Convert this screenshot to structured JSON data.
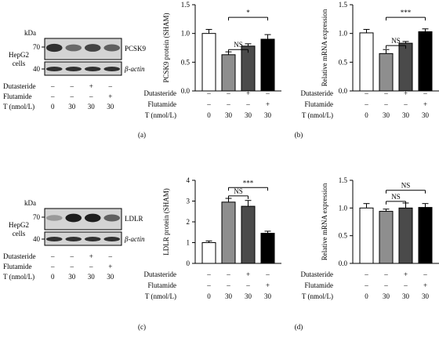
{
  "condition_labels": [
    "Dutasteride",
    "Flutamide",
    "T (nmol/L)"
  ],
  "conditions": {
    "dutasteride": [
      "–",
      "–",
      "+",
      "–"
    ],
    "flutamide": [
      "–",
      "–",
      "–",
      "+"
    ],
    "t_nmol": [
      "0",
      "30",
      "30",
      "30"
    ]
  },
  "blots": [
    {
      "panel_label": "(a)",
      "cell_label": [
        "HepG2",
        "cells"
      ],
      "kda_label": "kDa",
      "markers": [
        "70",
        "40"
      ],
      "target": "PCSK9",
      "loading": "β-actin",
      "target_intensity": [
        0.85,
        0.55,
        0.75,
        0.6
      ],
      "loading_intensity": [
        0.85,
        0.85,
        0.85,
        0.85
      ]
    },
    {
      "panel_label": "(c)",
      "cell_label": [
        "HepG2",
        "cells"
      ],
      "kda_label": "kDa",
      "markers": [
        "70",
        "40"
      ],
      "target": "LDLR",
      "loading": "β-actin",
      "target_intensity": [
        0.3,
        0.95,
        0.95,
        0.6
      ],
      "loading_intensity": [
        0.85,
        0.85,
        0.85,
        0.85
      ]
    }
  ],
  "chart_data": [
    {
      "panel_label": "",
      "type": "bar",
      "categories": [
        "0",
        "30",
        "30",
        "30"
      ],
      "values": [
        1.0,
        0.63,
        0.78,
        0.9
      ],
      "errors": [
        0.07,
        0.05,
        0.04,
        0.08
      ],
      "bar_colors": [
        "#ffffff",
        "#8e8e8e",
        "#4a4a4a",
        "#000000"
      ],
      "ylabel": "PCSK9 protein (SHAM)",
      "ylim": [
        0,
        1.5
      ],
      "yticks": [
        "0.0",
        "0.5",
        "1.0",
        "1.5"
      ],
      "significance": [
        {
          "from": 1,
          "to": 2,
          "label": "NS",
          "y": 0.72
        },
        {
          "from": 1,
          "to": 3,
          "label": "*",
          "y": 1.28
        }
      ]
    },
    {
      "panel_label": "(b)",
      "type": "bar",
      "categories": [
        "0",
        "30",
        "30",
        "30"
      ],
      "values": [
        1.01,
        0.65,
        0.83,
        1.03
      ],
      "errors": [
        0.06,
        0.07,
        0.03,
        0.05
      ],
      "bar_colors": [
        "#ffffff",
        "#8e8e8e",
        "#4a4a4a",
        "#000000"
      ],
      "ylabel": "Relative mRNA expression",
      "ylim": [
        0,
        1.5
      ],
      "yticks": [
        "0.0",
        "0.5",
        "1.0",
        "1.5"
      ],
      "significance": [
        {
          "from": 1,
          "to": 2,
          "label": "NS",
          "y": 0.79
        },
        {
          "from": 1,
          "to": 3,
          "label": "***",
          "y": 1.28
        }
      ]
    },
    {
      "panel_label": "",
      "type": "bar",
      "categories": [
        "0",
        "30",
        "30",
        "30"
      ],
      "values": [
        1.0,
        2.95,
        2.75,
        1.45
      ],
      "errors": [
        0.08,
        0.18,
        0.28,
        0.1
      ],
      "bar_colors": [
        "#ffffff",
        "#8e8e8e",
        "#4a4a4a",
        "#000000"
      ],
      "ylabel": "LDLR protein (SHAM)",
      "ylim": [
        0,
        4
      ],
      "yticks": [
        "0",
        "1",
        "2",
        "3",
        "4"
      ],
      "significance": [
        {
          "from": 1,
          "to": 2,
          "label": "NS",
          "y": 3.25
        },
        {
          "from": 1,
          "to": 3,
          "label": "***",
          "y": 3.65
        }
      ]
    },
    {
      "panel_label": "(d)",
      "type": "bar",
      "categories": [
        "0",
        "30",
        "30",
        "30"
      ],
      "values": [
        1.0,
        0.94,
        1.0,
        1.01
      ],
      "errors": [
        0.08,
        0.04,
        0.09,
        0.07
      ],
      "bar_colors": [
        "#ffffff",
        "#8e8e8e",
        "#4a4a4a",
        "#000000"
      ],
      "ylabel": "Relative mRNA expression",
      "ylim": [
        0,
        1.5
      ],
      "yticks": [
        "0.0",
        "0.5",
        "1.0",
        "1.5"
      ],
      "significance": [
        {
          "from": 1,
          "to": 2,
          "label": "NS",
          "y": 1.12
        },
        {
          "from": 1,
          "to": 3,
          "label": "NS",
          "y": 1.32
        }
      ]
    }
  ]
}
